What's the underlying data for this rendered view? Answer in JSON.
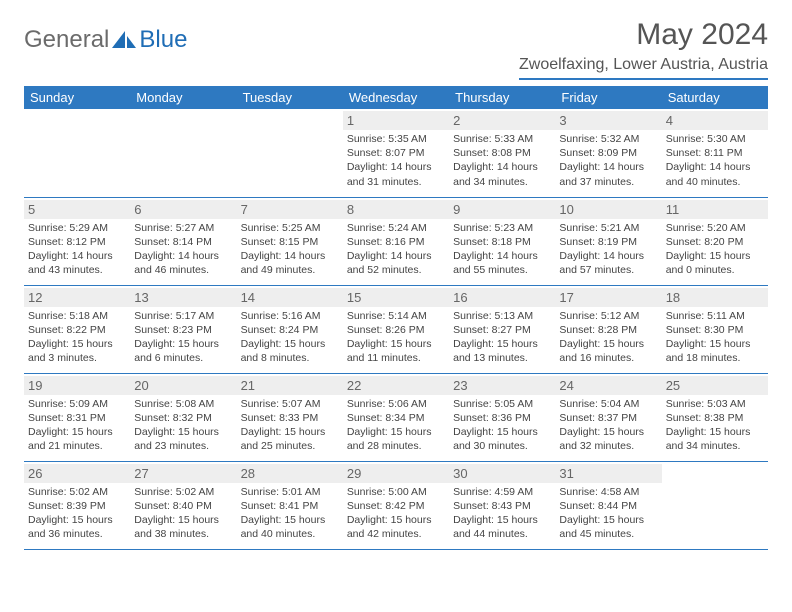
{
  "brand": {
    "part1": "General",
    "part2": "Blue"
  },
  "title": "May 2024",
  "location": "Zwoelfaxing, Lower Austria, Austria",
  "colors": {
    "header_bg": "#2e79c1",
    "header_text": "#ffffff",
    "daynum_bg": "#eeeeee",
    "border": "#2e79c1",
    "brand_gray": "#6b6b6b",
    "brand_blue": "#1f6db5"
  },
  "weekdays": [
    "Sunday",
    "Monday",
    "Tuesday",
    "Wednesday",
    "Thursday",
    "Friday",
    "Saturday"
  ],
  "weeks": [
    [
      null,
      null,
      null,
      {
        "n": "1",
        "sr": "5:35 AM",
        "ss": "8:07 PM",
        "dl": "14 hours and 31 minutes."
      },
      {
        "n": "2",
        "sr": "5:33 AM",
        "ss": "8:08 PM",
        "dl": "14 hours and 34 minutes."
      },
      {
        "n": "3",
        "sr": "5:32 AM",
        "ss": "8:09 PM",
        "dl": "14 hours and 37 minutes."
      },
      {
        "n": "4",
        "sr": "5:30 AM",
        "ss": "8:11 PM",
        "dl": "14 hours and 40 minutes."
      }
    ],
    [
      {
        "n": "5",
        "sr": "5:29 AM",
        "ss": "8:12 PM",
        "dl": "14 hours and 43 minutes."
      },
      {
        "n": "6",
        "sr": "5:27 AM",
        "ss": "8:14 PM",
        "dl": "14 hours and 46 minutes."
      },
      {
        "n": "7",
        "sr": "5:25 AM",
        "ss": "8:15 PM",
        "dl": "14 hours and 49 minutes."
      },
      {
        "n": "8",
        "sr": "5:24 AM",
        "ss": "8:16 PM",
        "dl": "14 hours and 52 minutes."
      },
      {
        "n": "9",
        "sr": "5:23 AM",
        "ss": "8:18 PM",
        "dl": "14 hours and 55 minutes."
      },
      {
        "n": "10",
        "sr": "5:21 AM",
        "ss": "8:19 PM",
        "dl": "14 hours and 57 minutes."
      },
      {
        "n": "11",
        "sr": "5:20 AM",
        "ss": "8:20 PM",
        "dl": "15 hours and 0 minutes."
      }
    ],
    [
      {
        "n": "12",
        "sr": "5:18 AM",
        "ss": "8:22 PM",
        "dl": "15 hours and 3 minutes."
      },
      {
        "n": "13",
        "sr": "5:17 AM",
        "ss": "8:23 PM",
        "dl": "15 hours and 6 minutes."
      },
      {
        "n": "14",
        "sr": "5:16 AM",
        "ss": "8:24 PM",
        "dl": "15 hours and 8 minutes."
      },
      {
        "n": "15",
        "sr": "5:14 AM",
        "ss": "8:26 PM",
        "dl": "15 hours and 11 minutes."
      },
      {
        "n": "16",
        "sr": "5:13 AM",
        "ss": "8:27 PM",
        "dl": "15 hours and 13 minutes."
      },
      {
        "n": "17",
        "sr": "5:12 AM",
        "ss": "8:28 PM",
        "dl": "15 hours and 16 minutes."
      },
      {
        "n": "18",
        "sr": "5:11 AM",
        "ss": "8:30 PM",
        "dl": "15 hours and 18 minutes."
      }
    ],
    [
      {
        "n": "19",
        "sr": "5:09 AM",
        "ss": "8:31 PM",
        "dl": "15 hours and 21 minutes."
      },
      {
        "n": "20",
        "sr": "5:08 AM",
        "ss": "8:32 PM",
        "dl": "15 hours and 23 minutes."
      },
      {
        "n": "21",
        "sr": "5:07 AM",
        "ss": "8:33 PM",
        "dl": "15 hours and 25 minutes."
      },
      {
        "n": "22",
        "sr": "5:06 AM",
        "ss": "8:34 PM",
        "dl": "15 hours and 28 minutes."
      },
      {
        "n": "23",
        "sr": "5:05 AM",
        "ss": "8:36 PM",
        "dl": "15 hours and 30 minutes."
      },
      {
        "n": "24",
        "sr": "5:04 AM",
        "ss": "8:37 PM",
        "dl": "15 hours and 32 minutes."
      },
      {
        "n": "25",
        "sr": "5:03 AM",
        "ss": "8:38 PM",
        "dl": "15 hours and 34 minutes."
      }
    ],
    [
      {
        "n": "26",
        "sr": "5:02 AM",
        "ss": "8:39 PM",
        "dl": "15 hours and 36 minutes."
      },
      {
        "n": "27",
        "sr": "5:02 AM",
        "ss": "8:40 PM",
        "dl": "15 hours and 38 minutes."
      },
      {
        "n": "28",
        "sr": "5:01 AM",
        "ss": "8:41 PM",
        "dl": "15 hours and 40 minutes."
      },
      {
        "n": "29",
        "sr": "5:00 AM",
        "ss": "8:42 PM",
        "dl": "15 hours and 42 minutes."
      },
      {
        "n": "30",
        "sr": "4:59 AM",
        "ss": "8:43 PM",
        "dl": "15 hours and 44 minutes."
      },
      {
        "n": "31",
        "sr": "4:58 AM",
        "ss": "8:44 PM",
        "dl": "15 hours and 45 minutes."
      },
      null
    ]
  ],
  "labels": {
    "sunrise": "Sunrise:",
    "sunset": "Sunset:",
    "daylight": "Daylight:"
  }
}
